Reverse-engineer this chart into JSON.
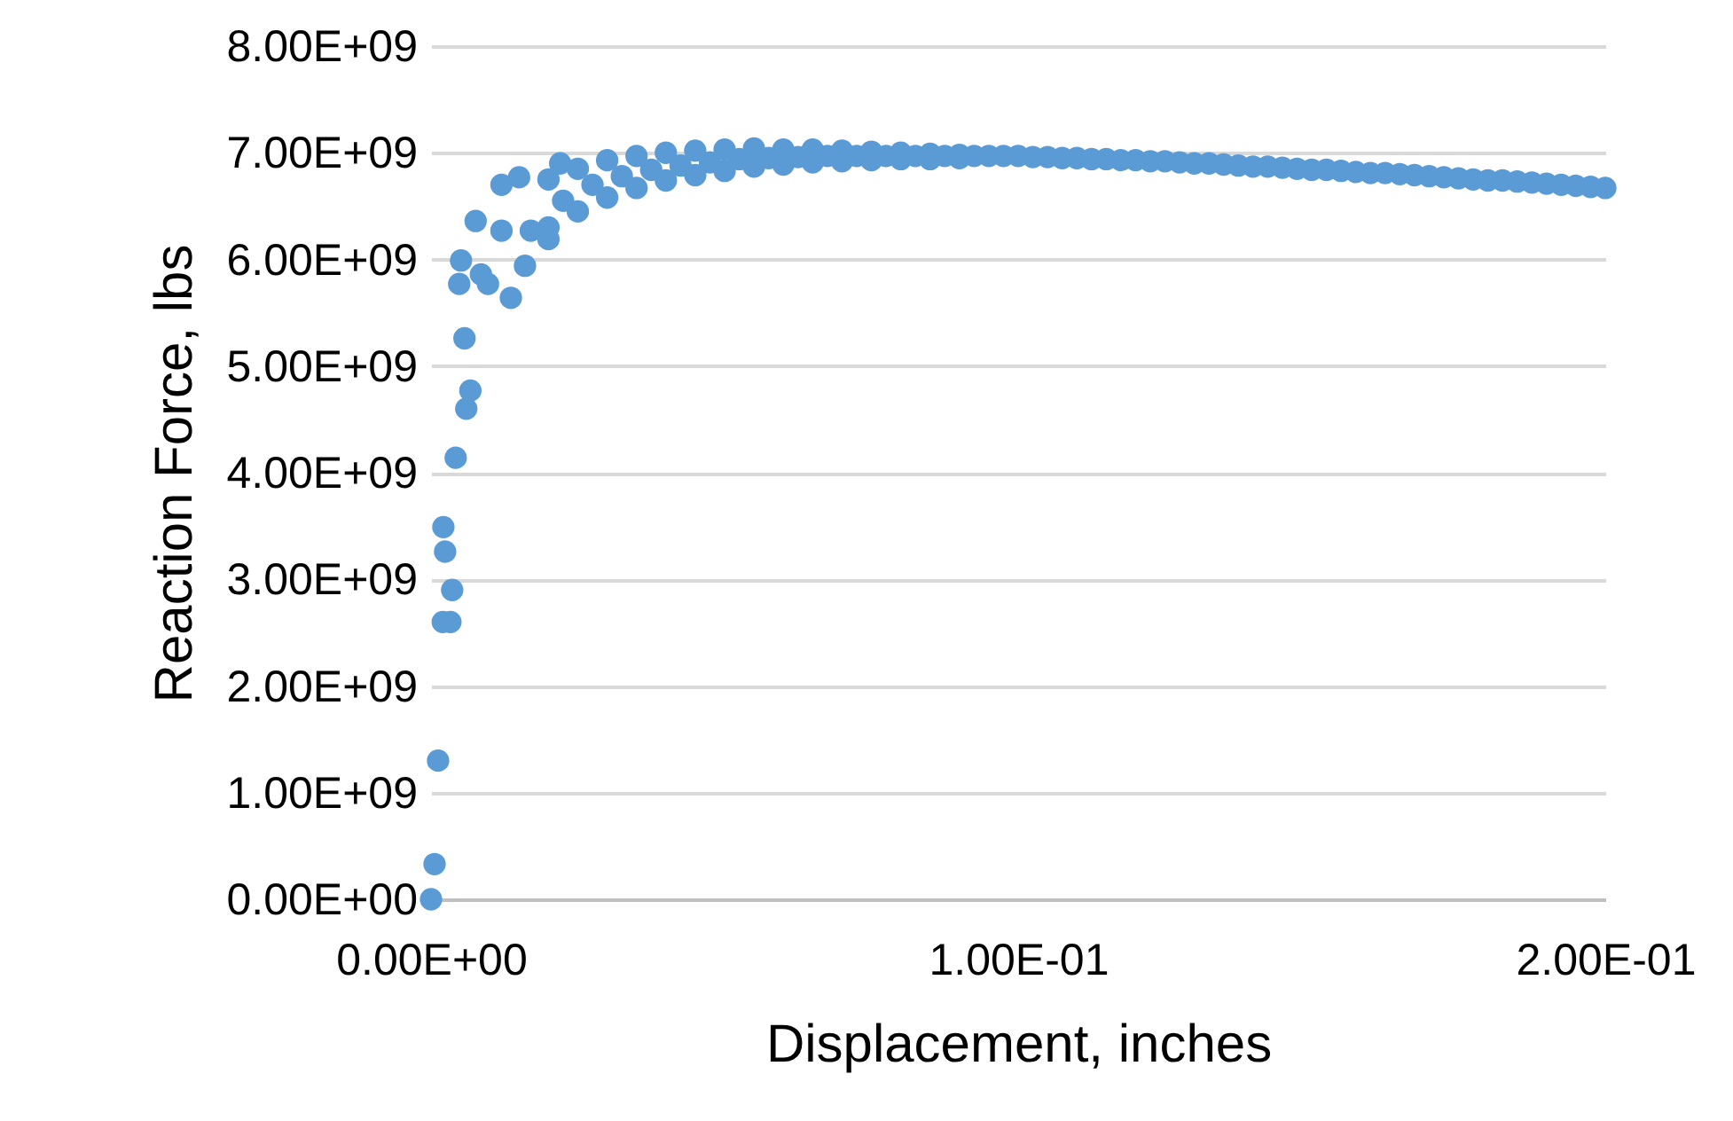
{
  "chart_data": {
    "type": "scatter",
    "xlabel": "Displacement, inches",
    "ylabel": "Reaction Force, lbs",
    "xlim": [
      0,
      0.2
    ],
    "xticks": [
      {
        "value": 0,
        "label": "0.00E+00"
      },
      {
        "value": 0.1,
        "label": "1.00E-01"
      },
      {
        "value": 0.2,
        "label": "2.00E-01"
      }
    ],
    "ylim": [
      0,
      8000000000.0
    ],
    "yticks": [
      {
        "value": 0,
        "label": "0.00E+00"
      },
      {
        "value": 1000000000.0,
        "label": "1.00E+09"
      },
      {
        "value": 2000000000.0,
        "label": "2.00E+09"
      },
      {
        "value": 3000000000.0,
        "label": "3.00E+09"
      },
      {
        "value": 4000000000.0,
        "label": "4.00E+09"
      },
      {
        "value": 5000000000.0,
        "label": "5.00E+09"
      },
      {
        "value": 6000000000.0,
        "label": "6.00E+09"
      },
      {
        "value": 7000000000.0,
        "label": "7.00E+09"
      },
      {
        "value": 8000000000.0,
        "label": "8.00E+09"
      }
    ],
    "grid": "y",
    "marker": "circle",
    "series": [
      {
        "color": "#5b9bd5",
        "x": [
          0,
          0.0006,
          0.0012,
          0.002,
          0.0033,
          0.0036,
          0.0024,
          0.0021,
          0.0042,
          0.006,
          0.0067,
          0.0057,
          0.0136,
          0.0048,
          0.0051,
          0.0097,
          0.0085,
          0.0076,
          0.012,
          0.012,
          0.015,
          0.017,
          0.02,
          0.022,
          0.016,
          0.02,
          0.025,
          0.03,
          0.035,
          0.04,
          0.045,
          0.05,
          0.055,
          0.06,
          0.065,
          0.07,
          0.075,
          0.08,
          0.085,
          0.09,
          0.02,
          0.025,
          0.03,
          0.035,
          0.04,
          0.045,
          0.05,
          0.055,
          0.06,
          0.065,
          0.07,
          0.075,
          0.08,
          0.085,
          0.09,
          0.0225,
          0.0275,
          0.0325,
          0.0375,
          0.0425,
          0.0475,
          0.0525,
          0.0575,
          0.0625,
          0.0675,
          0.0725,
          0.0775,
          0.0825,
          0.0875,
          0.0925,
          0.095,
          0.0975,
          0.1,
          0.1025,
          0.105,
          0.1075,
          0.11,
          0.1125,
          0.115,
          0.1175,
          0.12,
          0.1225,
          0.125,
          0.1275,
          0.13,
          0.1325,
          0.135,
          0.1375,
          0.14,
          0.1425,
          0.145,
          0.1475,
          0.15,
          0.1525,
          0.155,
          0.1575,
          0.16,
          0.1625,
          0.165,
          0.1675,
          0.17,
          0.1725,
          0.175,
          0.1775,
          0.18,
          0.1825,
          0.185,
          0.1875,
          0.19,
          0.1925,
          0.195,
          0.1975,
          0.2
        ],
        "values": [
          0,
          330000000.0,
          1300000000.0,
          2600000000.0,
          2600000000.0,
          2900000000.0,
          3260000000.0,
          3490000000.0,
          4140000000.0,
          4600000000.0,
          4770000000.0,
          5260000000.0,
          5640000000.0,
          5770000000.0,
          5990000000.0,
          5770000000.0,
          5860000000.0,
          6360000000.0,
          6270000000.0,
          6700000000.0,
          6770000000.0,
          6270000000.0,
          6190000000.0,
          6900000000.0,
          5940000000.0,
          6750000000.0,
          6850000000.0,
          6930000000.0,
          6970000000.0,
          7000000000.0,
          7020000000.0,
          7030000000.0,
          7040000000.0,
          7030000000.0,
          7030000000.0,
          7020000000.0,
          7010000000.0,
          7000000000.0,
          6990000000.0,
          6980000000.0,
          6300000000.0,
          6450000000.0,
          6580000000.0,
          6670000000.0,
          6740000000.0,
          6790000000.0,
          6830000000.0,
          6870000000.0,
          6890000000.0,
          6910000000.0,
          6920000000.0,
          6930000000.0,
          6940000000.0,
          6940000000.0,
          6950000000.0,
          6550000000.0,
          6700000000.0,
          6780000000.0,
          6840000000.0,
          6880000000.0,
          6910000000.0,
          6940000000.0,
          6950000000.0,
          6960000000.0,
          6970000000.0,
          6970000000.0,
          6970000000.0,
          6970000000.0,
          6970000000.0,
          6970000000.0,
          6970000000.0,
          6970000000.0,
          6970000000.0,
          6960000000.0,
          6960000000.0,
          6950000000.0,
          6950000000.0,
          6940000000.0,
          6940000000.0,
          6930000000.0,
          6930000000.0,
          6920000000.0,
          6920000000.0,
          6910000000.0,
          6900000000.0,
          6900000000.0,
          6890000000.0,
          6880000000.0,
          6870000000.0,
          6870000000.0,
          6860000000.0,
          6850000000.0,
          6840000000.0,
          6840000000.0,
          6830000000.0,
          6820000000.0,
          6810000000.0,
          6810000000.0,
          6800000000.0,
          6790000000.0,
          6780000000.0,
          6770000000.0,
          6760000000.0,
          6750000000.0,
          6740000000.0,
          6740000000.0,
          6730000000.0,
          6720000000.0,
          6710000000.0,
          6700000000.0,
          6690000000.0,
          6680000000.0,
          6670000000.0
        ]
      }
    ]
  }
}
